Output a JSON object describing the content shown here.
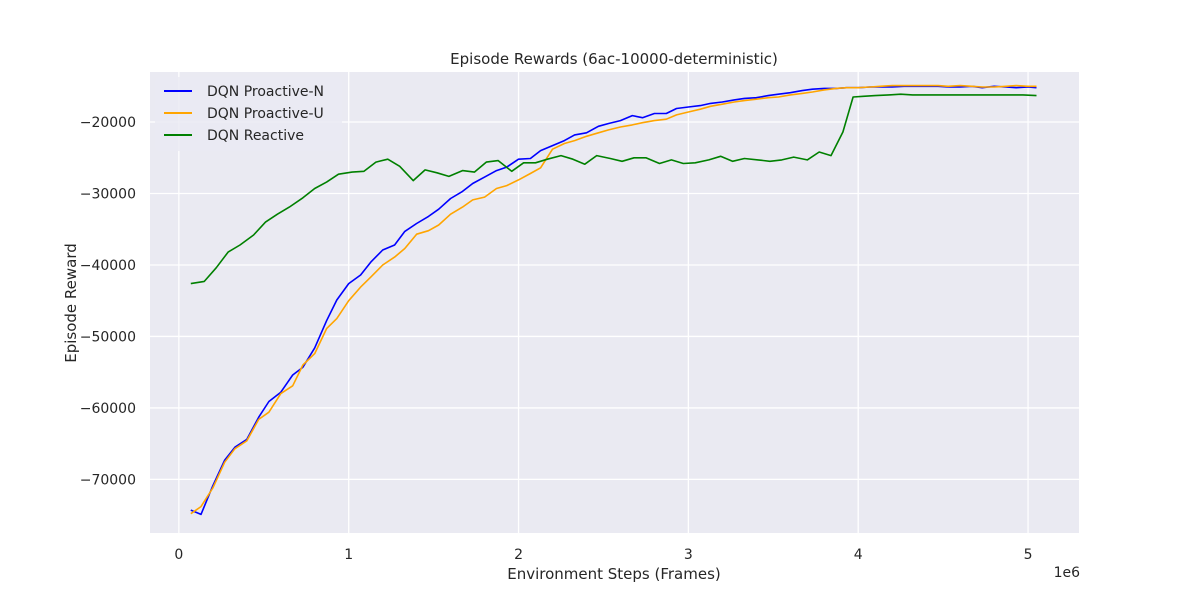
{
  "chart_data": {
    "type": "line",
    "title": "Episode Rewards (6ac-10000-deterministic)",
    "xlabel": "Environment Steps (Frames)",
    "ylabel": "Episode Reward",
    "x_offset_label": "1e6",
    "xlim": [
      -0.17,
      5.3
    ],
    "ylim": [
      -77500,
      -13000
    ],
    "xticks": [
      0,
      1,
      2,
      3,
      4,
      5
    ],
    "yticks": [
      -70000,
      -60000,
      -50000,
      -40000,
      -30000,
      -20000
    ],
    "xtick_labels": [
      "0",
      "1",
      "2",
      "3",
      "4",
      "5"
    ],
    "ytick_labels": [
      "−70000",
      "−60000",
      "−50000",
      "−40000",
      "−30000",
      "−20000"
    ],
    "grid": true,
    "legend_position": "top-left",
    "background": "#eaeaf2",
    "series": [
      {
        "name": "DQN Proactive-N",
        "color": "#0000ff",
        "x": [
          0.07,
          0.13,
          0.2,
          0.27,
          0.33,
          0.4,
          0.47,
          0.53,
          0.6,
          0.67,
          0.73,
          0.8,
          0.87,
          0.93,
          1.0,
          1.07,
          1.13,
          1.2,
          1.27,
          1.33,
          1.4,
          1.47,
          1.53,
          1.6,
          1.67,
          1.73,
          1.8,
          1.87,
          1.93,
          2.0,
          2.07,
          2.13,
          2.2,
          2.27,
          2.33,
          2.4,
          2.47,
          2.53,
          2.6,
          2.67,
          2.73,
          2.8,
          2.87,
          2.93,
          3.0,
          3.07,
          3.13,
          3.2,
          3.27,
          3.33,
          3.4,
          3.47,
          3.53,
          3.6,
          3.67,
          3.73,
          3.8,
          3.87,
          3.93,
          4.0,
          4.07,
          4.13,
          4.2,
          4.27,
          4.33,
          4.4,
          4.47,
          4.53,
          4.6,
          4.67,
          4.73,
          4.8,
          4.87,
          4.93,
          5.0,
          5.05
        ],
        "y": [
          -74300,
          -74900,
          -70900,
          -67300,
          -65500,
          -64400,
          -61300,
          -59100,
          -57800,
          -55400,
          -54300,
          -51600,
          -47800,
          -44900,
          -42600,
          -41400,
          -39600,
          -37900,
          -37200,
          -35300,
          -34200,
          -33200,
          -32200,
          -30700,
          -29700,
          -28600,
          -27700,
          -26800,
          -26300,
          -25200,
          -25100,
          -24000,
          -23300,
          -22600,
          -21800,
          -21500,
          -20600,
          -20200,
          -19800,
          -19100,
          -19400,
          -18800,
          -18800,
          -18100,
          -17900,
          -17700,
          -17400,
          -17200,
          -16900,
          -16700,
          -16600,
          -16300,
          -16100,
          -15900,
          -15600,
          -15400,
          -15300,
          -15300,
          -15200,
          -15200,
          -15100,
          -15100,
          -15100,
          -15000,
          -15000,
          -15000,
          -15000,
          -15100,
          -15100,
          -15000,
          -15200,
          -15000,
          -15100,
          -15200,
          -15100,
          -15200
        ]
      },
      {
        "name": "DQN Proactive-U",
        "color": "#ffa500",
        "x": [
          0.07,
          0.13,
          0.2,
          0.27,
          0.33,
          0.4,
          0.47,
          0.53,
          0.6,
          0.67,
          0.73,
          0.8,
          0.87,
          0.93,
          1.0,
          1.07,
          1.13,
          1.2,
          1.27,
          1.33,
          1.4,
          1.47,
          1.53,
          1.6,
          1.67,
          1.73,
          1.8,
          1.87,
          1.93,
          2.0,
          2.07,
          2.13,
          2.2,
          2.27,
          2.33,
          2.4,
          2.47,
          2.53,
          2.6,
          2.67,
          2.73,
          2.8,
          2.87,
          2.93,
          3.0,
          3.07,
          3.13,
          3.2,
          3.27,
          3.33,
          3.4,
          3.47,
          3.53,
          3.6,
          3.67,
          3.73,
          3.8,
          3.87,
          3.93,
          4.0,
          4.07,
          4.13,
          4.2,
          4.27,
          4.33,
          4.4,
          4.47,
          4.53,
          4.6,
          4.67,
          4.73,
          4.8,
          4.87,
          4.93,
          5.0,
          5.05
        ],
        "y": [
          -74800,
          -73800,
          -71200,
          -67600,
          -65700,
          -64600,
          -61600,
          -60600,
          -58000,
          -56900,
          -54000,
          -52400,
          -48900,
          -47500,
          -45000,
          -43100,
          -41700,
          -40000,
          -38900,
          -37700,
          -35700,
          -35200,
          -34400,
          -32900,
          -31900,
          -30900,
          -30500,
          -29300,
          -28900,
          -28100,
          -27200,
          -26400,
          -23800,
          -23000,
          -22600,
          -22000,
          -21500,
          -21100,
          -20700,
          -20400,
          -20100,
          -19800,
          -19600,
          -19000,
          -18600,
          -18200,
          -17800,
          -17500,
          -17200,
          -17000,
          -16800,
          -16600,
          -16500,
          -16200,
          -16000,
          -15800,
          -15500,
          -15300,
          -15200,
          -15200,
          -15100,
          -15000,
          -14900,
          -14900,
          -14900,
          -14900,
          -14900,
          -15000,
          -14900,
          -15000,
          -15100,
          -15100,
          -15000,
          -14900,
          -15000,
          -15000
        ]
      },
      {
        "name": "DQN Reactive",
        "color": "#008000",
        "x": [
          0.07,
          0.15,
          0.22,
          0.29,
          0.36,
          0.44,
          0.51,
          0.58,
          0.65,
          0.73,
          0.8,
          0.87,
          0.94,
          1.02,
          1.09,
          1.16,
          1.23,
          1.3,
          1.38,
          1.45,
          1.52,
          1.59,
          1.67,
          1.74,
          1.81,
          1.88,
          1.96,
          2.03,
          2.1,
          2.17,
          2.25,
          2.32,
          2.39,
          2.46,
          2.54,
          2.61,
          2.68,
          2.75,
          2.83,
          2.9,
          2.97,
          3.04,
          3.12,
          3.19,
          3.26,
          3.33,
          3.41,
          3.48,
          3.55,
          3.62,
          3.7,
          3.77,
          3.84,
          3.91,
          3.97,
          4.03,
          4.1,
          4.18,
          4.25,
          4.32,
          4.39,
          4.47,
          4.54,
          4.61,
          4.68,
          4.76,
          4.83,
          4.9,
          4.97,
          5.05
        ],
        "y": [
          -42600,
          -42300,
          -40400,
          -38200,
          -37200,
          -35800,
          -34000,
          -32900,
          -31900,
          -30600,
          -29300,
          -28400,
          -27300,
          -27000,
          -26900,
          -25600,
          -25200,
          -26200,
          -28200,
          -26700,
          -27100,
          -27600,
          -26800,
          -27000,
          -25600,
          -25400,
          -26900,
          -25700,
          -25700,
          -25200,
          -24700,
          -25200,
          -25900,
          -24700,
          -25100,
          -25500,
          -25000,
          -25000,
          -25800,
          -25300,
          -25800,
          -25700,
          -25300,
          -24800,
          -25500,
          -25100,
          -25300,
          -25500,
          -25300,
          -24900,
          -25300,
          -24200,
          -24700,
          -21400,
          -16500,
          -16400,
          -16300,
          -16200,
          -16100,
          -16200,
          -16200,
          -16200,
          -16200,
          -16200,
          -16200,
          -16200,
          -16200,
          -16200,
          -16200,
          -16300
        ]
      }
    ]
  }
}
